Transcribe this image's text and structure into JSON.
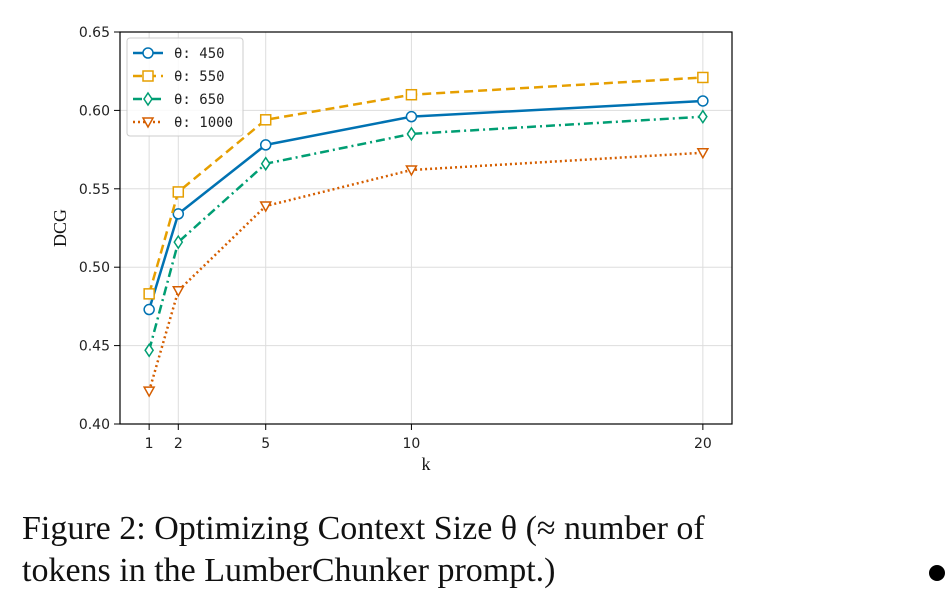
{
  "chart_data": {
    "type": "line",
    "x": [
      1,
      2,
      5,
      10,
      20
    ],
    "xlabel": "k",
    "ylabel": "DCG",
    "ylim": [
      0.4,
      0.65
    ],
    "xlim": [
      0,
      21
    ],
    "xticks": [
      "1",
      "2",
      "5",
      "10",
      "20"
    ],
    "yticks": [
      "0.40",
      "0.45",
      "0.50",
      "0.55",
      "0.60",
      "0.65"
    ],
    "grid": true,
    "legend_position": "top-left",
    "series": [
      {
        "name": "θ: 450",
        "values": [
          0.473,
          0.534,
          0.578,
          0.596,
          0.606
        ],
        "color": "#0072b2",
        "style": "solid",
        "marker": "circle"
      },
      {
        "name": "θ: 550",
        "values": [
          0.483,
          0.548,
          0.594,
          0.61,
          0.621
        ],
        "color": "#e69f00",
        "style": "dashed",
        "marker": "square"
      },
      {
        "name": "θ: 650",
        "values": [
          0.447,
          0.516,
          0.566,
          0.585,
          0.596
        ],
        "color": "#009e73",
        "style": "dashdot",
        "marker": "diamond"
      },
      {
        "name": "θ: 1000",
        "values": [
          0.421,
          0.485,
          0.539,
          0.562,
          0.573
        ],
        "color": "#d55e00",
        "style": "dotted",
        "marker": "triangle-down"
      }
    ]
  },
  "caption": {
    "line1": "Figure 2:  Optimizing Context Size θ (≈ number of",
    "line2": "tokens in the LumberChunker prompt.)"
  }
}
